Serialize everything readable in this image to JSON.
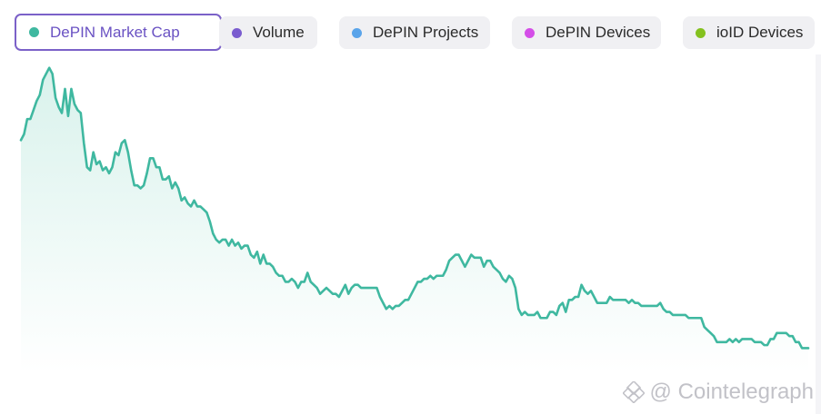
{
  "tabs": [
    {
      "label": "DePIN Market Cap",
      "color": "#3fb8a0",
      "active": true
    },
    {
      "label": "Volume",
      "color": "#7a5ccf",
      "active": false
    },
    {
      "label": "DePIN Projects",
      "color": "#5aa4ea",
      "active": false
    },
    {
      "label": "DePIN Devices",
      "color": "#d44ee8",
      "active": false
    },
    {
      "label": "ioID Devices",
      "color": "#84c11f",
      "active": false
    }
  ],
  "watermark": "@ Cointelegraph",
  "colors": {
    "line": "#3fb8a0",
    "area_top": "#d9f2ec",
    "area_bottom": "#ffffff",
    "active_border": "#7b61c8"
  },
  "chart_data": {
    "type": "area",
    "title": "",
    "xlabel": "",
    "ylabel": "",
    "ylim": [
      0,
      100
    ],
    "grid": false,
    "series": [
      {
        "name": "DePIN Market Cap",
        "values": [
          77,
          79,
          84,
          84,
          87,
          90,
          92,
          97,
          99,
          101,
          99,
          91,
          88,
          86,
          94,
          85,
          94,
          89,
          87,
          86,
          76,
          68,
          67,
          73,
          69,
          70,
          67,
          68,
          66,
          68,
          73,
          72,
          76,
          77,
          73,
          67,
          62,
          62,
          61,
          62,
          66,
          71,
          71,
          68,
          68,
          64,
          64,
          65,
          61,
          63,
          61,
          57,
          58,
          56,
          55,
          57,
          55,
          55,
          54,
          53,
          50,
          46,
          44,
          43,
          44,
          44,
          42,
          44,
          42,
          43,
          41,
          42,
          42,
          39,
          38,
          40,
          36,
          39,
          36,
          36,
          35,
          33,
          32,
          32,
          30,
          30,
          31,
          30,
          28,
          30,
          30,
          33,
          30,
          29,
          28,
          26,
          27,
          28,
          27,
          26,
          26,
          25,
          27,
          29,
          26,
          28,
          29,
          29,
          28,
          28,
          28,
          28,
          28,
          28,
          25,
          23,
          21,
          22,
          21,
          22,
          22,
          23,
          24,
          24,
          26,
          28,
          30,
          30,
          31,
          31,
          32,
          31,
          32,
          32,
          32,
          34,
          37,
          38,
          39,
          39,
          37,
          35,
          37,
          39,
          38,
          38,
          38,
          35,
          37,
          37,
          35,
          34,
          33,
          31,
          30,
          32,
          31,
          28,
          21,
          19,
          20,
          19,
          19,
          19,
          20,
          18,
          18,
          18,
          20,
          20,
          19,
          22,
          23,
          20,
          24,
          24,
          25,
          25,
          29,
          27,
          26,
          27,
          25,
          23,
          23,
          23,
          23,
          25,
          24,
          24,
          24,
          24,
          24,
          23,
          24,
          23,
          23,
          22,
          22,
          22,
          22,
          22,
          22,
          23,
          21,
          20,
          20,
          19,
          19,
          19,
          19,
          19,
          18,
          18,
          18,
          18,
          18,
          15,
          14,
          13,
          12,
          10,
          10,
          10,
          10,
          11,
          10,
          11,
          10,
          11,
          11,
          11,
          11,
          10,
          10,
          10,
          9,
          9,
          11,
          11,
          13,
          13,
          13,
          13,
          12,
          12,
          10,
          10,
          8,
          8,
          8
        ]
      }
    ]
  }
}
